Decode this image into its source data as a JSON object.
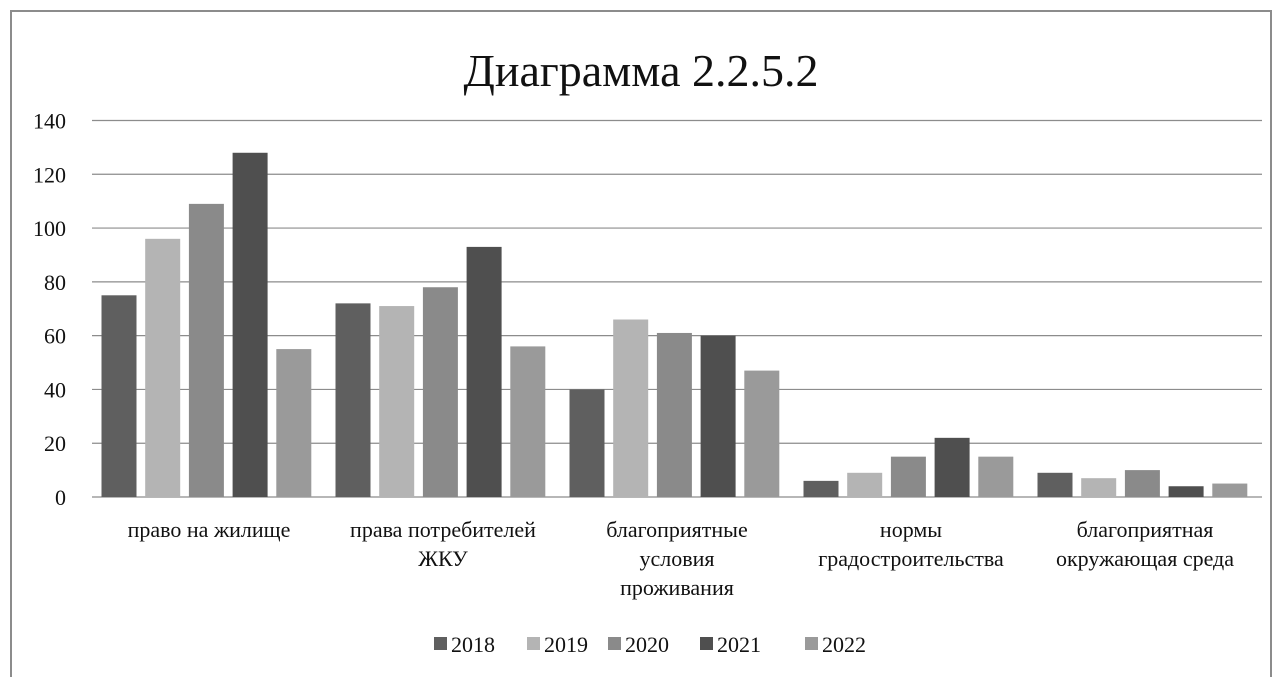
{
  "chart_data": {
    "type": "bar",
    "title": "Диаграмма 2.2.5.2",
    "categories": [
      [
        "право на жилище"
      ],
      [
        "права потребителей",
        "ЖКУ"
      ],
      [
        "благоприятные",
        "условия",
        "проживания"
      ],
      [
        "нормы",
        "градостроительства"
      ],
      [
        "благоприятная",
        "окружающая среда"
      ]
    ],
    "series": [
      {
        "name": "2018",
        "color": "#5f5f5f",
        "values": [
          75,
          72,
          40,
          6,
          9
        ]
      },
      {
        "name": "2019",
        "color": "#b4b4b4",
        "values": [
          96,
          71,
          66,
          9,
          7
        ]
      },
      {
        "name": "2020",
        "color": "#8a8a8a",
        "values": [
          109,
          78,
          61,
          15,
          10
        ]
      },
      {
        "name": "2021",
        "color": "#4f4f4f",
        "values": [
          128,
          93,
          60,
          22,
          4
        ]
      },
      {
        "name": "2022",
        "color": "#9a9a9a",
        "values": [
          55,
          56,
          47,
          15,
          5
        ]
      }
    ],
    "ylim": [
      0,
      140
    ],
    "yticks": [
      0,
      20,
      40,
      60,
      80,
      100,
      120,
      140
    ],
    "grid": true,
    "legend_position": "bottom"
  }
}
